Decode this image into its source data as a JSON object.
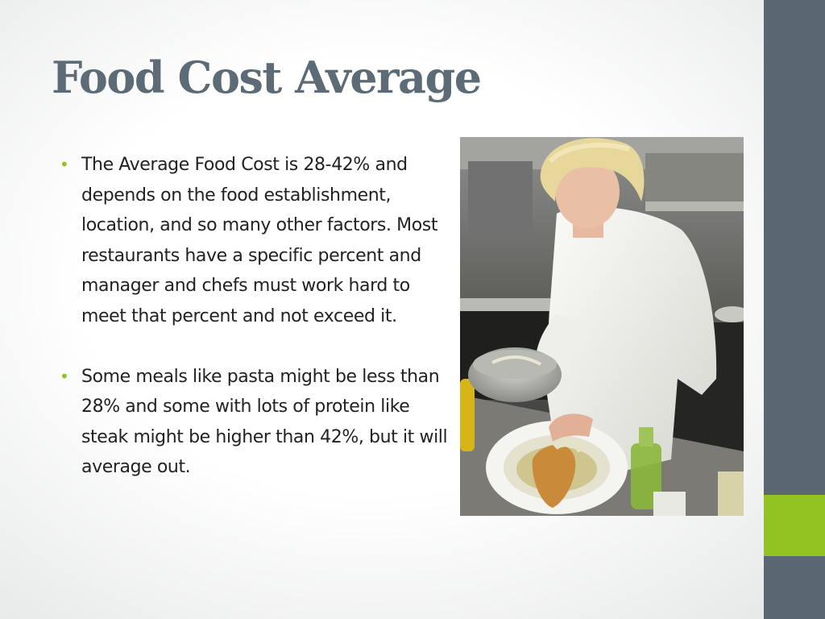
{
  "slide": {
    "title": "Food Cost Average",
    "bullets": [
      {
        "text": "The Average Food Cost is 28-42% and depends on the food establishment, location, and so many other factors.  Most restaurants have a specific percent and manager and chefs must work hard to meet that percent and not exceed it."
      },
      {
        "text": "Some meals like pasta might be less than 28% and some with lots of protein like steak might be higher than 42%, but it will average out."
      }
    ],
    "photo": {
      "icon": "chef-plating-photo"
    }
  },
  "theme": {
    "title_color": "#5d6b77",
    "sidebar_color": "#5a6671",
    "accent_color": "#93c323",
    "bullet_color": "#93c323"
  }
}
